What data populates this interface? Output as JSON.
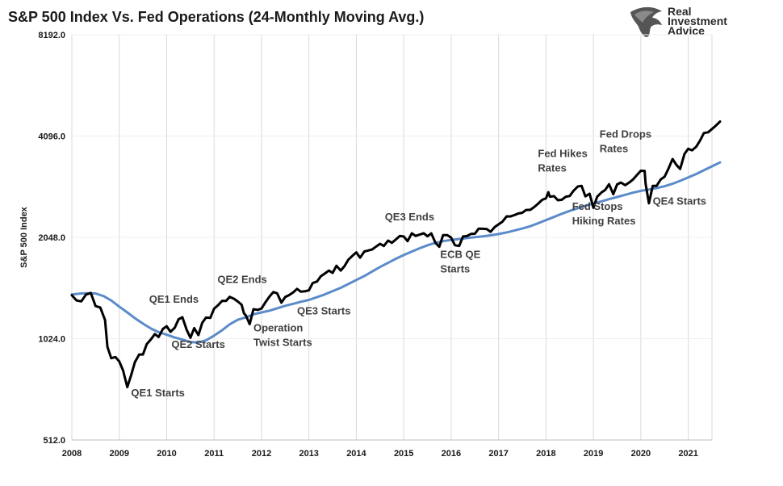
{
  "chart_data": {
    "type": "line",
    "title": "S&P 500 Index Vs. Fed Operations (24-Monthly Moving Avg.)",
    "ylabel": "S&P 500 Index",
    "xlabel": "",
    "yscale": "log2",
    "ylim": [
      512,
      8192
    ],
    "xlim": [
      2008,
      2021.5
    ],
    "yticks": [
      512,
      1024,
      2048,
      4096,
      8192
    ],
    "ytick_labels": [
      "512.0",
      "1024.0",
      "2048.0",
      "4096.0",
      "8192.0"
    ],
    "xticks": [
      2008,
      2009,
      2010,
      2011,
      2012,
      2013,
      2014,
      2015,
      2016,
      2017,
      2018,
      2019,
      2020,
      2021
    ],
    "xtick_labels": [
      "2008",
      "2009",
      "2010",
      "2011",
      "2012",
      "2013",
      "2014",
      "2015",
      "2016",
      "2017",
      "2018",
      "2019",
      "2020",
      "2021"
    ],
    "grid": "vertical",
    "series": [
      {
        "name": "S&P 500 Index",
        "color": "#000000",
        "points": [
          [
            2008.0,
            1378
          ],
          [
            2008.1,
            1330
          ],
          [
            2008.2,
            1322
          ],
          [
            2008.3,
            1385
          ],
          [
            2008.4,
            1400
          ],
          [
            2008.5,
            1280
          ],
          [
            2008.6,
            1267
          ],
          [
            2008.7,
            1164
          ],
          [
            2008.75,
            968
          ],
          [
            2008.83,
            896
          ],
          [
            2008.92,
            903
          ],
          [
            2009.0,
            877
          ],
          [
            2009.08,
            825
          ],
          [
            2009.17,
            735
          ],
          [
            2009.25,
            797
          ],
          [
            2009.33,
            872
          ],
          [
            2009.42,
            919
          ],
          [
            2009.5,
            919
          ],
          [
            2009.58,
            987
          ],
          [
            2009.67,
            1020
          ],
          [
            2009.75,
            1057
          ],
          [
            2009.83,
            1036
          ],
          [
            2009.92,
            1095
          ],
          [
            2010.0,
            1115
          ],
          [
            2010.08,
            1073
          ],
          [
            2010.17,
            1104
          ],
          [
            2010.25,
            1169
          ],
          [
            2010.33,
            1186
          ],
          [
            2010.42,
            1089
          ],
          [
            2010.5,
            1030
          ],
          [
            2010.58,
            1101
          ],
          [
            2010.67,
            1049
          ],
          [
            2010.75,
            1141
          ],
          [
            2010.83,
            1183
          ],
          [
            2010.92,
            1180
          ],
          [
            2011.0,
            1257
          ],
          [
            2011.08,
            1286
          ],
          [
            2011.17,
            1327
          ],
          [
            2011.25,
            1325
          ],
          [
            2011.33,
            1363
          ],
          [
            2011.42,
            1345
          ],
          [
            2011.5,
            1320
          ],
          [
            2011.58,
            1292
          ],
          [
            2011.63,
            1218
          ],
          [
            2011.67,
            1200
          ],
          [
            2011.75,
            1131
          ],
          [
            2011.83,
            1253
          ],
          [
            2011.92,
            1247
          ],
          [
            2012.0,
            1258
          ],
          [
            2012.08,
            1312
          ],
          [
            2012.17,
            1366
          ],
          [
            2012.25,
            1408
          ],
          [
            2012.33,
            1397
          ],
          [
            2012.42,
            1310
          ],
          [
            2012.5,
            1362
          ],
          [
            2012.58,
            1379
          ],
          [
            2012.67,
            1406
          ],
          [
            2012.75,
            1440
          ],
          [
            2012.83,
            1412
          ],
          [
            2012.92,
            1416
          ],
          [
            2013.0,
            1426
          ],
          [
            2013.08,
            1498
          ],
          [
            2013.17,
            1514
          ],
          [
            2013.25,
            1569
          ],
          [
            2013.33,
            1597
          ],
          [
            2013.42,
            1631
          ],
          [
            2013.5,
            1606
          ],
          [
            2013.58,
            1686
          ],
          [
            2013.67,
            1632
          ],
          [
            2013.75,
            1682
          ],
          [
            2013.83,
            1757
          ],
          [
            2013.92,
            1806
          ],
          [
            2014.0,
            1848
          ],
          [
            2014.08,
            1782
          ],
          [
            2014.17,
            1859
          ],
          [
            2014.25,
            1872
          ],
          [
            2014.33,
            1884
          ],
          [
            2014.42,
            1924
          ],
          [
            2014.5,
            1960
          ],
          [
            2014.58,
            1931
          ],
          [
            2014.67,
            2003
          ],
          [
            2014.75,
            1972
          ],
          [
            2014.83,
            2018
          ],
          [
            2014.92,
            2068
          ],
          [
            2015.0,
            2059
          ],
          [
            2015.08,
            1995
          ],
          [
            2015.17,
            2105
          ],
          [
            2015.25,
            2068
          ],
          [
            2015.33,
            2086
          ],
          [
            2015.42,
            2107
          ],
          [
            2015.5,
            2063
          ],
          [
            2015.58,
            2104
          ],
          [
            2015.67,
            1972
          ],
          [
            2015.75,
            1920
          ],
          [
            2015.83,
            2079
          ],
          [
            2015.92,
            2080
          ],
          [
            2016.0,
            2044
          ],
          [
            2016.08,
            1940
          ],
          [
            2016.17,
            1932
          ],
          [
            2016.25,
            2060
          ],
          [
            2016.33,
            2065
          ],
          [
            2016.42,
            2097
          ],
          [
            2016.5,
            2099
          ],
          [
            2016.58,
            2174
          ],
          [
            2016.67,
            2171
          ],
          [
            2016.75,
            2168
          ],
          [
            2016.83,
            2126
          ],
          [
            2016.92,
            2199
          ],
          [
            2017.0,
            2239
          ],
          [
            2017.08,
            2279
          ],
          [
            2017.17,
            2364
          ],
          [
            2017.25,
            2363
          ],
          [
            2017.33,
            2384
          ],
          [
            2017.42,
            2412
          ],
          [
            2017.5,
            2423
          ],
          [
            2017.58,
            2470
          ],
          [
            2017.67,
            2472
          ],
          [
            2017.75,
            2519
          ],
          [
            2017.83,
            2575
          ],
          [
            2017.92,
            2648
          ],
          [
            2018.0,
            2674
          ],
          [
            2018.05,
            2790
          ],
          [
            2018.08,
            2705
          ],
          [
            2018.17,
            2714
          ],
          [
            2018.25,
            2640
          ],
          [
            2018.33,
            2648
          ],
          [
            2018.42,
            2705
          ],
          [
            2018.5,
            2718
          ],
          [
            2018.58,
            2816
          ],
          [
            2018.67,
            2901
          ],
          [
            2018.75,
            2913
          ],
          [
            2018.83,
            2712
          ],
          [
            2018.92,
            2760
          ],
          [
            2019.0,
            2507
          ],
          [
            2019.08,
            2704
          ],
          [
            2019.17,
            2784
          ],
          [
            2019.25,
            2834
          ],
          [
            2019.33,
            2946
          ],
          [
            2019.42,
            2752
          ],
          [
            2019.5,
            2942
          ],
          [
            2019.58,
            2980
          ],
          [
            2019.67,
            2926
          ],
          [
            2019.75,
            2977
          ],
          [
            2019.83,
            3038
          ],
          [
            2019.92,
            3140
          ],
          [
            2020.0,
            3231
          ],
          [
            2020.08,
            3226
          ],
          [
            2020.1,
            2954
          ],
          [
            2020.17,
            2585
          ],
          [
            2020.25,
            2912
          ],
          [
            2020.33,
            2912
          ],
          [
            2020.42,
            3044
          ],
          [
            2020.5,
            3100
          ],
          [
            2020.58,
            3271
          ],
          [
            2020.67,
            3500
          ],
          [
            2020.75,
            3363
          ],
          [
            2020.83,
            3270
          ],
          [
            2020.92,
            3622
          ],
          [
            2021.0,
            3756
          ],
          [
            2021.08,
            3714
          ],
          [
            2021.17,
            3811
          ],
          [
            2021.25,
            3973
          ],
          [
            2021.33,
            4181
          ],
          [
            2021.42,
            4204
          ],
          [
            2021.5,
            4297
          ],
          [
            2021.58,
            4395
          ],
          [
            2021.67,
            4522
          ]
        ]
      },
      {
        "name": "24-Monthly Moving Avg.",
        "color": "#5b8bc9",
        "points": [
          [
            2008.0,
            1385
          ],
          [
            2008.2,
            1395
          ],
          [
            2008.33,
            1397
          ],
          [
            2008.5,
            1395
          ],
          [
            2008.67,
            1370
          ],
          [
            2008.83,
            1330
          ],
          [
            2009.0,
            1275
          ],
          [
            2009.17,
            1225
          ],
          [
            2009.33,
            1178
          ],
          [
            2009.5,
            1135
          ],
          [
            2009.67,
            1097
          ],
          [
            2009.83,
            1070
          ],
          [
            2010.0,
            1052
          ],
          [
            2010.17,
            1032
          ],
          [
            2010.33,
            1018
          ],
          [
            2010.5,
            1000
          ],
          [
            2010.67,
            998
          ],
          [
            2010.83,
            1012
          ],
          [
            2011.0,
            1045
          ],
          [
            2011.17,
            1085
          ],
          [
            2011.33,
            1130
          ],
          [
            2011.5,
            1165
          ],
          [
            2011.67,
            1185
          ],
          [
            2011.83,
            1210
          ],
          [
            2012.0,
            1225
          ],
          [
            2012.17,
            1240
          ],
          [
            2012.33,
            1260
          ],
          [
            2012.5,
            1282
          ],
          [
            2012.67,
            1300
          ],
          [
            2012.83,
            1318
          ],
          [
            2013.0,
            1335
          ],
          [
            2013.17,
            1360
          ],
          [
            2013.33,
            1385
          ],
          [
            2013.5,
            1418
          ],
          [
            2013.67,
            1450
          ],
          [
            2013.83,
            1488
          ],
          [
            2014.0,
            1530
          ],
          [
            2014.17,
            1572
          ],
          [
            2014.33,
            1620
          ],
          [
            2014.5,
            1672
          ],
          [
            2014.67,
            1720
          ],
          [
            2014.83,
            1768
          ],
          [
            2015.0,
            1815
          ],
          [
            2015.17,
            1858
          ],
          [
            2015.33,
            1900
          ],
          [
            2015.5,
            1940
          ],
          [
            2015.67,
            1972
          ],
          [
            2015.83,
            1995
          ],
          [
            2016.0,
            2012
          ],
          [
            2016.17,
            2025
          ],
          [
            2016.33,
            2038
          ],
          [
            2016.5,
            2050
          ],
          [
            2016.67,
            2063
          ],
          [
            2016.83,
            2077
          ],
          [
            2017.0,
            2095
          ],
          [
            2017.17,
            2118
          ],
          [
            2017.33,
            2145
          ],
          [
            2017.5,
            2175
          ],
          [
            2017.67,
            2210
          ],
          [
            2017.83,
            2255
          ],
          [
            2018.0,
            2305
          ],
          [
            2018.17,
            2355
          ],
          [
            2018.33,
            2405
          ],
          [
            2018.5,
            2455
          ],
          [
            2018.67,
            2500
          ],
          [
            2018.83,
            2542
          ],
          [
            2019.0,
            2580
          ],
          [
            2019.17,
            2620
          ],
          [
            2019.33,
            2660
          ],
          [
            2019.5,
            2700
          ],
          [
            2019.67,
            2740
          ],
          [
            2019.83,
            2780
          ],
          [
            2020.0,
            2815
          ],
          [
            2020.17,
            2840
          ],
          [
            2020.33,
            2868
          ],
          [
            2020.5,
            2905
          ],
          [
            2020.67,
            2955
          ],
          [
            2020.83,
            3015
          ],
          [
            2021.0,
            3085
          ],
          [
            2021.17,
            3160
          ],
          [
            2021.33,
            3240
          ],
          [
            2021.5,
            3330
          ],
          [
            2021.67,
            3420
          ]
        ]
      }
    ],
    "annotations": [
      {
        "lines": [
          "QE1 Starts"
        ],
        "x": 2009.25,
        "y": 690
      },
      {
        "lines": [
          "QE1 Ends"
        ],
        "x": 2009.63,
        "y": 1310
      },
      {
        "lines": [
          "QE2 Starts"
        ],
        "x": 2010.1,
        "y": 960
      },
      {
        "lines": [
          "QE2 Ends"
        ],
        "x": 2011.07,
        "y": 1500
      },
      {
        "lines": [
          "Operation",
          "Twist Starts"
        ],
        "x": 2011.83,
        "y": 1075
      },
      {
        "lines": [
          "QE3 Starts"
        ],
        "x": 2012.75,
        "y": 1210
      },
      {
        "lines": [
          "QE3 Ends"
        ],
        "x": 2014.6,
        "y": 2300
      },
      {
        "lines": [
          "ECB QE",
          "Starts"
        ],
        "x": 2015.77,
        "y": 1780
      },
      {
        "lines": [
          "Fed Hikes",
          "Rates"
        ],
        "x": 2017.83,
        "y": 3550
      },
      {
        "lines": [
          "Fed Stops",
          "Hiking Rates"
        ],
        "x": 2018.55,
        "y": 2470
      },
      {
        "lines": [
          "Fed Drops",
          "Rates"
        ],
        "x": 2019.13,
        "y": 4050
      },
      {
        "lines": [
          "QE4 Starts"
        ],
        "x": 2020.25,
        "y": 2560
      }
    ]
  },
  "logo": {
    "line1": "Real",
    "line2": "Investment",
    "line3": "Advice",
    "icon": "eagle-head-icon"
  }
}
